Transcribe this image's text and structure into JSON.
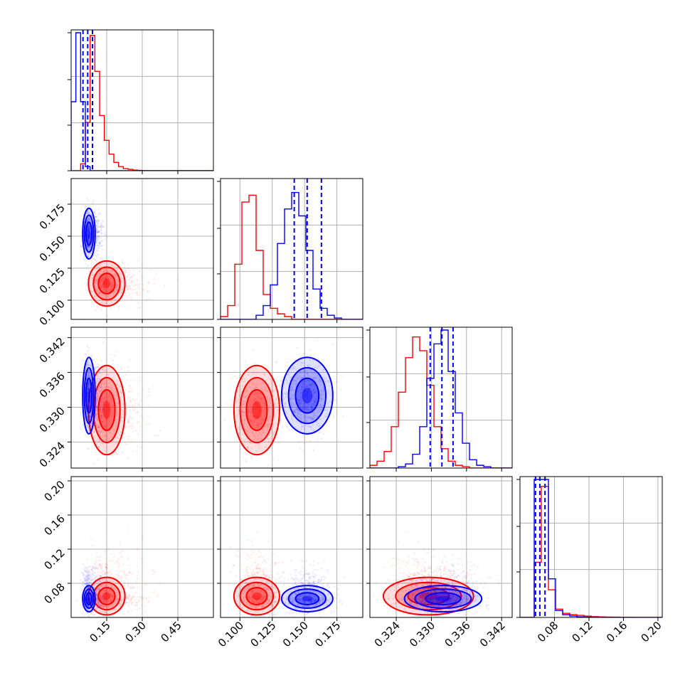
{
  "chart_data": {
    "type": "corner",
    "title": "",
    "parameters": [
      "",
      "",
      "",
      ""
    ],
    "colors": {
      "series_a": "#ff0000",
      "series_b": "#0000ff"
    },
    "grid": true,
    "axis_ranges": [
      [
        0.0,
        0.6
      ],
      [
        0.085,
        0.195
      ],
      [
        0.3195,
        0.3438
      ],
      [
        0.04,
        0.205
      ]
    ],
    "tick_values": [
      [
        0.15,
        0.3,
        0.45
      ],
      [
        0.1,
        0.125,
        0.15,
        0.175
      ],
      [
        0.324,
        0.33,
        0.336,
        0.342
      ],
      [
        0.08,
        0.12,
        0.16,
        0.2
      ]
    ],
    "tick_labels": [
      [
        "0.15",
        "0.30",
        "0.45"
      ],
      [
        "0.100",
        "0.125",
        "0.150",
        "0.175"
      ],
      [
        "0.324",
        "0.330",
        "0.336",
        "0.342"
      ],
      [
        "0.08",
        "0.12",
        "0.16",
        "0.20"
      ]
    ],
    "series": [
      {
        "color": "red",
        "peak": [
          0.15,
          0.113,
          0.3295,
          0.065
        ],
        "spread": [
          0.035,
          0.008,
          0.0035,
          0.01
        ],
        "histograms": [
          {
            "values": [
              0,
              0,
              5,
              35,
              98,
              72,
              40,
              22,
              12,
              6,
              3,
              1.5,
              1,
              0.5,
              0.2,
              0,
              0,
              0,
              0,
              0,
              0,
              0,
              0,
              0,
              0,
              0,
              0,
              0,
              0,
              0
            ]
          },
          {
            "values": [
              2,
              10,
              40,
              85,
              90,
              50,
              18,
              8,
              4,
              2,
              0,
              0,
              0,
              0,
              0,
              0,
              0,
              0,
              0,
              0
            ]
          },
          {
            "values": [
              2,
              5,
              12,
              30,
              55,
              80,
              95,
              85,
              60,
              30,
              14,
              5,
              2,
              1,
              0,
              0,
              0,
              0,
              0,
              0
            ]
          },
          {
            "values": [
              0,
              0,
              40,
              95,
              20,
              6,
              3,
              2,
              1.5,
              1,
              0.6,
              0.4,
              0.3,
              0.2,
              0.1,
              0.1,
              0,
              0,
              0,
              0
            ]
          }
        ]
      },
      {
        "color": "blue",
        "peak": [
          0.075,
          0.152,
          0.332,
          0.062
        ],
        "spread": [
          0.012,
          0.009,
          0.003,
          0.007
        ],
        "histograms": [
          {
            "values": [
              50,
              100,
              50,
              3,
              0,
              0,
              0,
              0,
              0,
              0,
              0,
              0,
              0,
              0,
              0,
              0,
              0,
              0,
              0,
              0,
              0,
              0,
              0,
              0,
              0,
              0,
              0,
              0,
              0,
              0
            ]
          },
          {
            "values": [
              0,
              0,
              0,
              0,
              0,
              3,
              10,
              25,
              55,
              80,
              92,
              75,
              50,
              22,
              8,
              3,
              1,
              0,
              0,
              0
            ]
          },
          {
            "values": [
              0,
              0,
              0,
              0,
              1,
              3,
              10,
              30,
              65,
              90,
              100,
              70,
              40,
              18,
              6,
              2,
              1,
              0,
              0,
              0
            ]
          },
          {
            "values": [
              0,
              0,
              100,
              100,
              28,
              5,
              2,
              1,
              0.5,
              0.3,
              0.2,
              0,
              0,
              0,
              0,
              0,
              0,
              0,
              0,
              0
            ]
          }
        ]
      }
    ],
    "quantiles_blue": [
      [
        0.05,
        0.07,
        0.09
      ],
      [
        0.142,
        0.152,
        0.163
      ],
      [
        0.3298,
        0.3318,
        0.3337
      ],
      [
        0.058,
        0.063,
        0.069
      ]
    ]
  }
}
